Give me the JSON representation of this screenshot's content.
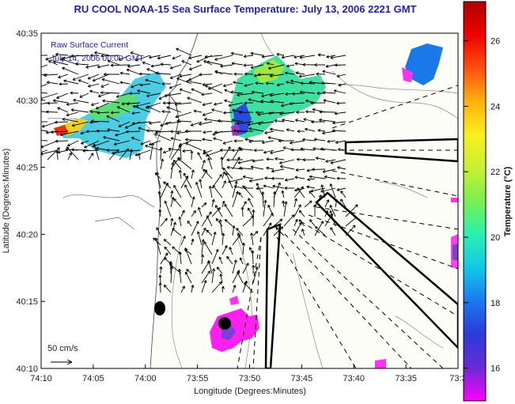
{
  "title": "RU COOL  NOAA-15  Sea Surface Temperature:  July 13, 2006 2221 GMT",
  "legend": {
    "line1": "Raw Surface Current",
    "line2": "July 14, 2006 00:00 GMT"
  },
  "scale_label": "50 cm/s",
  "axes": {
    "xlabel": "Longitude (Degrees:Minutes)",
    "ylabel": "Latitude (Degrees:Minutes)",
    "xticks": [
      "74:10",
      "74:05",
      "74:00",
      "73:55",
      "73:50",
      "73:45",
      "73:40",
      "73:35",
      "73:3"
    ],
    "yticks": [
      "40:35",
      "40:30",
      "40:25",
      "40:20",
      "40:15",
      "40:10"
    ]
  },
  "colorbar": {
    "label": "Temperature (°C)",
    "ticks": [
      "26",
      "24",
      "22",
      "20",
      "18",
      "16"
    ],
    "range": [
      15,
      27.2
    ],
    "colors": [
      "#ff00ff",
      "#6a2bd6",
      "#2a3ad8",
      "#1c78f0",
      "#12c8e8",
      "#2af0b0",
      "#7af050",
      "#c8f030",
      "#f8f020",
      "#ffb010",
      "#ff5010",
      "#f00000",
      "#b00000"
    ]
  },
  "map": {
    "land_color": "#ffffff",
    "contour_color": "#888888",
    "stations": 2,
    "exclusion_zones": 3
  }
}
